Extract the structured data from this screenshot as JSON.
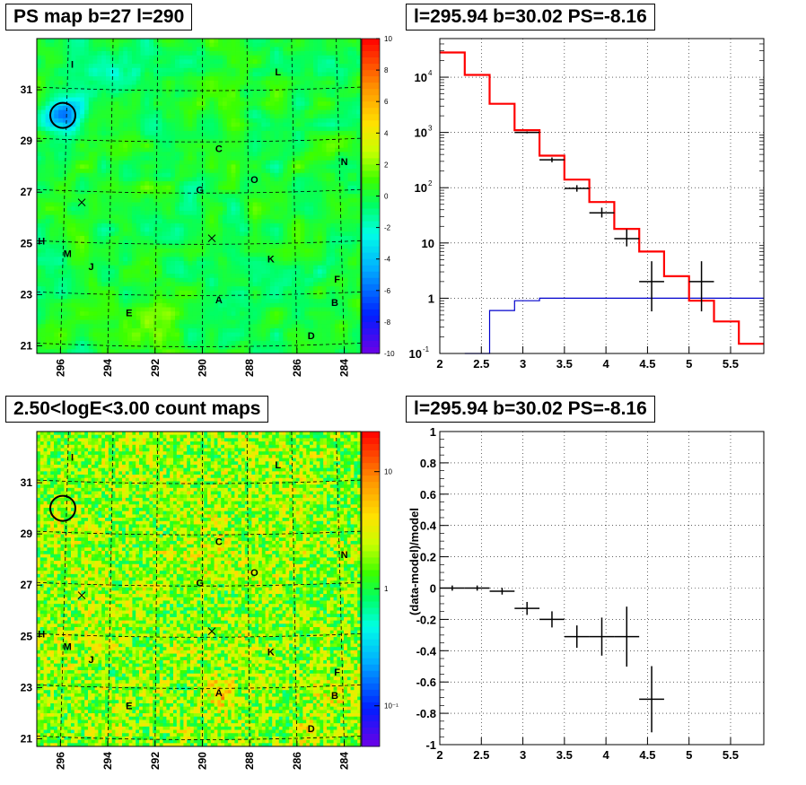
{
  "titles": {
    "map_tl": "PS map b=27 l=290",
    "spec_tr": "l=295.94 b=30.02 PS=-8.16",
    "map_bl": "2.50<logE<3.00 count maps",
    "spec_br": "l=295.94 b=30.02 PS=-8.16"
  },
  "colors": {
    "model": "#ff0000",
    "background": "#0000cc",
    "data": "#000000"
  },
  "chart_data": [
    {
      "type": "heatmap",
      "title": "PS map b=27 l=290",
      "x_ticks": [
        "296",
        "294",
        "292",
        "290",
        "288",
        "286",
        "284"
      ],
      "y_ticks": [
        "31",
        "29",
        "27",
        "25",
        "23",
        "21"
      ],
      "colorbar": {
        "min": -10,
        "max": 10,
        "ticks": [
          "10",
          "8",
          "6",
          "4",
          "2",
          "0",
          "-2",
          "-4",
          "-6",
          "-8",
          "-10"
        ]
      },
      "circle": {
        "l": 295.9,
        "b": 30.0
      },
      "crosses": [
        {
          "l": 295.1,
          "b": 26.6
        },
        {
          "l": 289.6,
          "b": 25.2
        }
      ],
      "sources": [
        {
          "label": "I",
          "l": 295.5,
          "b": 32.0
        },
        {
          "label": "L",
          "l": 286.8,
          "b": 31.7
        },
        {
          "label": "C",
          "l": 289.3,
          "b": 28.7
        },
        {
          "label": "N",
          "l": 284.0,
          "b": 28.2
        },
        {
          "label": "O",
          "l": 287.8,
          "b": 27.5
        },
        {
          "label": "G",
          "l": 290.1,
          "b": 27.1
        },
        {
          "label": "H",
          "l": 296.8,
          "b": 25.1
        },
        {
          "label": "M",
          "l": 295.7,
          "b": 24.6
        },
        {
          "label": "K",
          "l": 287.1,
          "b": 24.4
        },
        {
          "label": "J",
          "l": 294.7,
          "b": 24.1
        },
        {
          "label": "F",
          "l": 284.3,
          "b": 23.6
        },
        {
          "label": "A",
          "l": 289.3,
          "b": 22.8
        },
        {
          "label": "B",
          "l": 284.4,
          "b": 22.7
        },
        {
          "label": "E",
          "l": 293.1,
          "b": 22.3
        },
        {
          "label": "D",
          "l": 285.4,
          "b": 21.4
        }
      ]
    },
    {
      "type": "line",
      "title": "l=295.94 b=30.02 PS=-8.16",
      "xlim": [
        2,
        5.9
      ],
      "ylim_log": [
        0.1,
        50000
      ],
      "x_ticks": [
        "2",
        "2.5",
        "3",
        "3.5",
        "4",
        "4.5",
        "5",
        "5.5"
      ],
      "y_ticks": [
        {
          "val": 10000,
          "base": "10",
          "exp": "4"
        },
        {
          "val": 1000,
          "base": "10",
          "exp": "3"
        },
        {
          "val": 100,
          "base": "10",
          "exp": "2"
        },
        {
          "val": 10,
          "base": "10",
          "exp": ""
        },
        {
          "val": 1,
          "base": "1",
          "exp": ""
        },
        {
          "val": 0.1,
          "base": "10",
          "exp": "-1"
        }
      ],
      "series": [
        {
          "edges": [
            2.0,
            2.3,
            2.6,
            2.9,
            3.2,
            3.5,
            3.8,
            4.1,
            4.4,
            4.7,
            5.0,
            5.3,
            5.6,
            5.9
          ],
          "values": [
            28000,
            11000,
            3300,
            1100,
            380,
            140,
            55,
            18,
            7,
            2.5,
            0.9,
            0.38,
            0.15
          ]
        },
        {
          "edges": [
            2.3,
            2.6,
            2.9,
            3.2,
            3.5,
            3.8,
            4.1,
            4.4,
            4.7,
            5.0,
            5.3,
            5.6,
            5.9
          ],
          "values": [
            0.1,
            0.6,
            0.9,
            1.0,
            1.0,
            1.0,
            1.0,
            1.0,
            1.0,
            1.0,
            1.0,
            1.0
          ]
        }
      ],
      "points": [
        {
          "x": 3.05,
          "y": 1000,
          "xerr": 0.15,
          "ylo": 1000,
          "yhi": 1000
        },
        {
          "x": 3.35,
          "y": 320,
          "xerr": 0.15,
          "ylo": 300,
          "yhi": 340
        },
        {
          "x": 3.65,
          "y": 97,
          "xerr": 0.15,
          "ylo": 88,
          "yhi": 107
        },
        {
          "x": 3.95,
          "y": 35,
          "xerr": 0.15,
          "ylo": 30,
          "yhi": 42
        },
        {
          "x": 4.25,
          "y": 12,
          "xerr": 0.15,
          "ylo": 9,
          "yhi": 17
        },
        {
          "x": 4.55,
          "y": 2,
          "xerr": 0.15,
          "ylo": 0.6,
          "yhi": 4.5
        },
        {
          "x": 5.15,
          "y": 2,
          "xerr": 0.15,
          "ylo": 0.6,
          "yhi": 4.5
        }
      ]
    },
    {
      "type": "heatmap",
      "title": "2.50<logE<3.00 count maps",
      "x_ticks": [
        "296",
        "294",
        "292",
        "290",
        "288",
        "286",
        "284"
      ],
      "y_ticks": [
        "31",
        "29",
        "27",
        "25",
        "23",
        "21"
      ],
      "colorbar": {
        "log": true,
        "ticks": [
          {
            "val": 10,
            "label": "10"
          },
          {
            "val": 1,
            "label": "1"
          },
          {
            "val": 0.1,
            "label": "10⁻¹"
          }
        ]
      },
      "circle": {
        "l": 295.9,
        "b": 30.0
      },
      "crosses": [
        {
          "l": 295.1,
          "b": 26.6
        },
        {
          "l": 289.6,
          "b": 25.2
        }
      ],
      "sources": [
        {
          "label": "I",
          "l": 295.5,
          "b": 32.0
        },
        {
          "label": "L",
          "l": 286.8,
          "b": 31.7
        },
        {
          "label": "C",
          "l": 289.3,
          "b": 28.7
        },
        {
          "label": "N",
          "l": 284.0,
          "b": 28.2
        },
        {
          "label": "O",
          "l": 287.8,
          "b": 27.5
        },
        {
          "label": "G",
          "l": 290.1,
          "b": 27.1
        },
        {
          "label": "H",
          "l": 296.8,
          "b": 25.1
        },
        {
          "label": "M",
          "l": 295.7,
          "b": 24.6
        },
        {
          "label": "K",
          "l": 287.1,
          "b": 24.4
        },
        {
          "label": "J",
          "l": 294.7,
          "b": 24.1
        },
        {
          "label": "F",
          "l": 284.3,
          "b": 23.6
        },
        {
          "label": "A",
          "l": 289.3,
          "b": 22.8
        },
        {
          "label": "B",
          "l": 284.4,
          "b": 22.7
        },
        {
          "label": "E",
          "l": 293.1,
          "b": 22.3
        },
        {
          "label": "D",
          "l": 285.4,
          "b": 21.4
        }
      ]
    },
    {
      "type": "scatter",
      "title": "l=295.94 b=30.02 PS=-8.16",
      "ylabel": "(data-model)/model",
      "xlim": [
        2,
        5.9
      ],
      "ylim": [
        -1,
        1
      ],
      "x_ticks": [
        "2",
        "2.5",
        "3",
        "3.5",
        "4",
        "4.5",
        "5",
        "5.5"
      ],
      "y_ticks": [
        "1",
        "0.8",
        "0.6",
        "0.4",
        "0.2",
        "0",
        "-0.2",
        "-0.4",
        "-0.6",
        "-0.8",
        "-1"
      ],
      "points": [
        {
          "x": 2.15,
          "y": 0.0,
          "xerr": 0.15,
          "yerr": 0.005
        },
        {
          "x": 2.45,
          "y": 0.0,
          "xerr": 0.15,
          "yerr": 0.005
        },
        {
          "x": 2.75,
          "y": -0.02,
          "xerr": 0.15,
          "yerr": 0.01
        },
        {
          "x": 3.05,
          "y": -0.13,
          "xerr": 0.15,
          "yerr": 0.03
        },
        {
          "x": 3.35,
          "y": -0.2,
          "xerr": 0.15,
          "yerr": 0.04
        },
        {
          "x": 3.65,
          "y": -0.31,
          "xerr": 0.15,
          "yerr": 0.06
        },
        {
          "x": 3.95,
          "y": -0.31,
          "xerr": 0.15,
          "yerr": 0.11
        },
        {
          "x": 4.25,
          "y": -0.31,
          "xerr": 0.15,
          "yerr": 0.18
        },
        {
          "x": 4.55,
          "y": -0.71,
          "xerr": 0.15,
          "yerr": 0.2
        }
      ]
    }
  ]
}
